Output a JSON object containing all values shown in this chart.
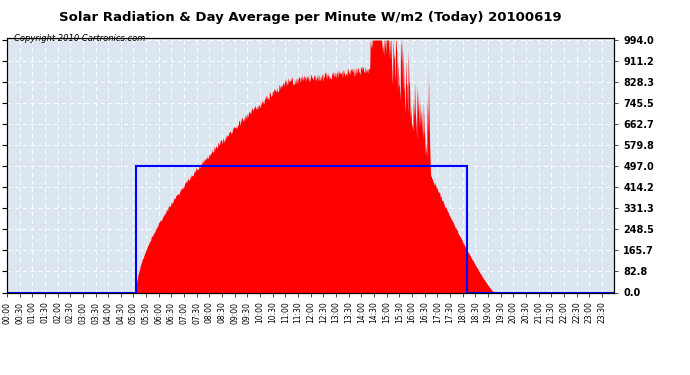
{
  "title": "Solar Radiation & Day Average per Minute W/m2 (Today) 20100619",
  "copyright": "Copyright 2010 Cartronics.com",
  "background_color": "#ffffff",
  "plot_bg_color": "#dce6f1",
  "y_max": 994.0,
  "y_ticks": [
    0.0,
    82.8,
    165.7,
    248.5,
    331.3,
    414.2,
    497.0,
    579.8,
    662.7,
    745.5,
    828.3,
    911.2,
    994.0
  ],
  "fill_color": "#ff0000",
  "line_color": "#0000ff",
  "avg_level": 497.0,
  "avg_start_minute": 305,
  "avg_end_minute": 1090,
  "sunrise_minute": 305,
  "sunset_minute": 1155,
  "peak_minute": 870,
  "peak_value": 994.0,
  "grid_color": "#cccccc",
  "grid_dash": [
    3,
    3
  ],
  "x_tick_minutes": [
    0,
    30,
    60,
    90,
    120,
    150,
    180,
    210,
    240,
    270,
    300,
    330,
    360,
    390,
    420,
    450,
    480,
    510,
    540,
    570,
    600,
    630,
    660,
    690,
    720,
    750,
    780,
    810,
    840,
    870,
    900,
    930,
    960,
    990,
    1020,
    1050,
    1080,
    1110,
    1140,
    1170,
    1200,
    1230,
    1260,
    1290,
    1320,
    1350,
    1380,
    1410
  ],
  "x_tick_labels": [
    "00:00",
    "00:30",
    "01:00",
    "01:30",
    "02:00",
    "02:30",
    "03:00",
    "03:30",
    "04:00",
    "04:30",
    "05:00",
    "05:30",
    "06:00",
    "06:30",
    "07:00",
    "07:30",
    "08:00",
    "08:30",
    "09:00",
    "09:30",
    "10:00",
    "10:30",
    "11:00",
    "11:30",
    "12:00",
    "12:30",
    "13:00",
    "13:30",
    "14:00",
    "14:30",
    "15:00",
    "15:30",
    "16:00",
    "16:30",
    "17:00",
    "17:30",
    "18:00",
    "18:30",
    "19:00",
    "19:30",
    "20:00",
    "20:30",
    "21:00",
    "21:30",
    "22:00",
    "22:30",
    "23:00",
    "23:30"
  ]
}
